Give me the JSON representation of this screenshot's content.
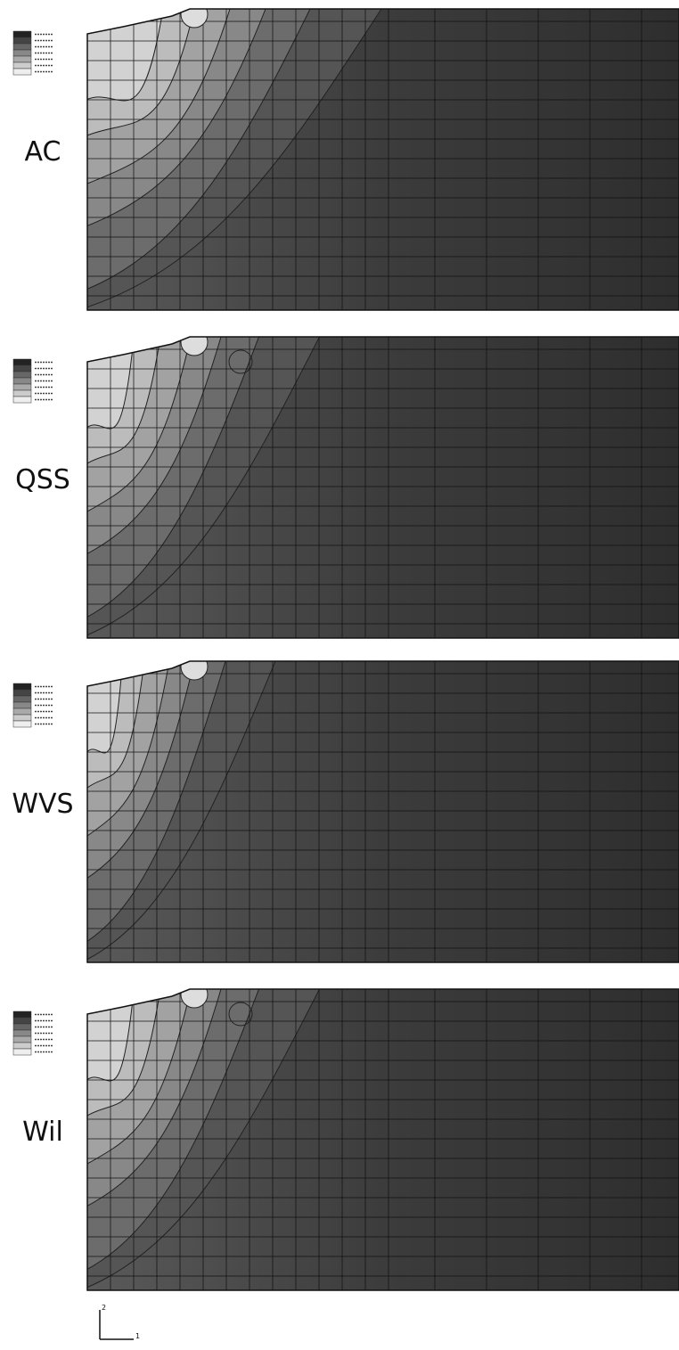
{
  "panels": [
    {
      "label": "AC"
    },
    {
      "label": "QSS"
    },
    {
      "label": "WVS"
    },
    {
      "label": "Wil"
    }
  ],
  "axes": {
    "vertical": "2",
    "horizontal": "1"
  }
}
